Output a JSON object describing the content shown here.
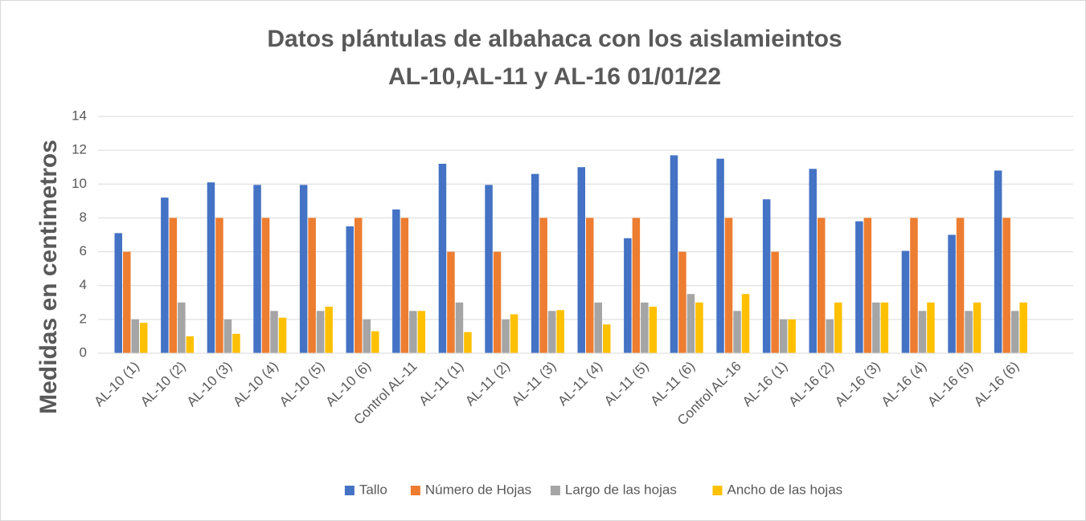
{
  "chart_data": {
    "type": "bar",
    "title": [
      "Datos plántulas de albahaca con los aislamieintos",
      "AL-10,AL-11 y AL-16  01/01/22"
    ],
    "y_label": "Medidas en centimetros",
    "categories": [
      "AL-10 (1)",
      "AL-10 (2)",
      "AL-10 (3)",
      "AL-10 (4)",
      "AL-10 (5)",
      "AL-10 (6)",
      "Control AL-11",
      "AL-11 (1)",
      "AL-11 (2)",
      "AL-11 (3)",
      "AL-11 (4)",
      "AL-11 (5)",
      "AL-11 (6)",
      "Control AL-16",
      "AL-16 (1)",
      "AL-16 (2)",
      "AL-16 (3)",
      "AL-16 (4)",
      "AL-16 (5)",
      "AL-16 (6)"
    ],
    "series": [
      {
        "name": "Tallo",
        "color": "#4472c4",
        "values": [
          7.1,
          9.2,
          10.1,
          9.95,
          9.95,
          7.5,
          8.5,
          11.2,
          9.95,
          10.6,
          11,
          6.8,
          11.7,
          11.5,
          9.1,
          10.9,
          7.8,
          6.05,
          7,
          10.8
        ]
      },
      {
        "name": "Número de Hojas",
        "color": "#ed7d31",
        "values": [
          6,
          8,
          8,
          8,
          8,
          8,
          8,
          6,
          6,
          8,
          8,
          8,
          6,
          8,
          6,
          8,
          8,
          8,
          8,
          8
        ]
      },
      {
        "name": "Largo de las hojas",
        "color": "#a5a5a5",
        "values": [
          2,
          3,
          2,
          2.5,
          2.5,
          2,
          2.5,
          3,
          2,
          2.5,
          3,
          3,
          3.5,
          2.5,
          2,
          2,
          3,
          2.5,
          2.5,
          2.5
        ]
      },
      {
        "name": "Ancho de las hojas",
        "color": "#ffc000",
        "values": [
          1.8,
          1,
          1.15,
          2.1,
          2.75,
          1.3,
          2.5,
          1.25,
          2.3,
          2.55,
          1.7,
          2.75,
          3,
          3.5,
          2,
          3,
          3,
          3,
          3,
          3
        ]
      }
    ],
    "ylim": [
      0,
      14
    ],
    "yticks": [
      0,
      2,
      4,
      6,
      8,
      10,
      12,
      14
    ],
    "grid": true,
    "legend": "bottom"
  }
}
